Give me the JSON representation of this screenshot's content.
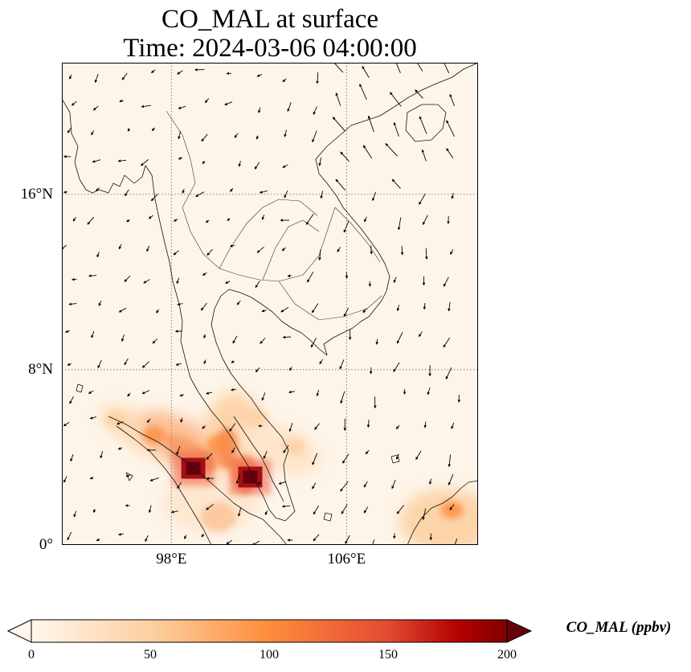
{
  "title": {
    "line1": "CO_MAL at surface",
    "line2": "Time: 2024-03-06 04:00:00"
  },
  "map": {
    "lon_range": [
      93,
      112
    ],
    "lat_range": [
      0,
      22
    ],
    "latitude_ticks": [
      {
        "value": 0,
        "label": "0°"
      },
      {
        "value": 8,
        "label": "8°N"
      },
      {
        "value": 16,
        "label": "16°N"
      }
    ],
    "longitude_ticks": [
      {
        "value": 98,
        "label": "98°E"
      },
      {
        "value": 106,
        "label": "106°E"
      }
    ],
    "gridlines": "dotted",
    "background_color": "#fdf5e9",
    "coastline_color": "#000000",
    "wind_vectors": "black arrows",
    "hotspots": [
      {
        "lon": 99.0,
        "lat": 3.5,
        "value": 200
      },
      {
        "lon": 101.6,
        "lat": 3.1,
        "value": 200
      },
      {
        "lon": 100.1,
        "lat": 4.6,
        "value": 95
      },
      {
        "lon": 97.2,
        "lat": 5.0,
        "value": 70
      },
      {
        "lon": 101.9,
        "lat": 5.8,
        "value": 55
      },
      {
        "lon": 95.5,
        "lat": 5.7,
        "value": 35
      },
      {
        "lon": 110.8,
        "lat": 1.6,
        "value": 60
      },
      {
        "lon": 103.6,
        "lat": 4.5,
        "value": 25
      }
    ]
  },
  "colorbar": {
    "label": "CO_MAL (ppbv)",
    "min": 0,
    "max": 200,
    "ticks": [
      "0",
      "50",
      "100",
      "150",
      "200"
    ],
    "extend": "both",
    "colors": [
      "#fff5eb",
      "#fdd0a2",
      "#fd8d3c",
      "#d94801",
      "#a50f15",
      "#67000d"
    ]
  }
}
